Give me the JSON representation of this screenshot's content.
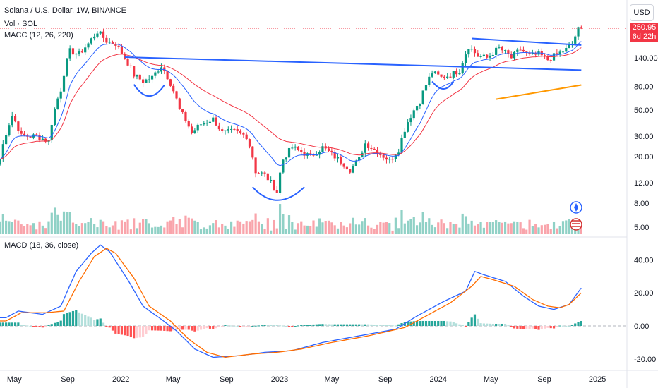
{
  "header": {
    "symbol_line": "Solana / U.S. Dollar, 1W, BINANCE",
    "vol_line": "Vol · SOL",
    "ma_line": "MACC (12, 26, 220)",
    "macd_line": "MACD (18, 36, close)",
    "currency": "USD"
  },
  "last_price": {
    "price": "250.95",
    "countdown": "6d 22h"
  },
  "colors": {
    "up": "#089981",
    "down": "#f23645",
    "fast_ma": "#2962ff",
    "slow_ma": "#f23645",
    "macd": "#2962ff",
    "signal": "#ff6d00",
    "drawing": "#2962ff",
    "orange_line": "#ff9800"
  },
  "chart_data": [
    {
      "type": "candlestick",
      "title": "Solana / U.S. Dollar, 1W, BINANCE",
      "y_scale": "log",
      "y_ticks": [
        "140.00",
        "80.00",
        "50.00",
        "30.00",
        "20.00",
        "12.00",
        "8.00",
        "5.00"
      ],
      "y_tick_values": [
        140,
        80,
        50,
        30,
        20,
        12,
        8,
        5
      ],
      "x_ticks": [
        "May",
        "Sep",
        "2022",
        "May",
        "Sep",
        "2023",
        "May",
        "Sep",
        "2024",
        "May",
        "Sep",
        "2025"
      ],
      "x_tick_dates": [
        "2021-05-01",
        "2021-09-01",
        "2022-01-01",
        "2022-05-01",
        "2022-09-01",
        "2023-01-01",
        "2023-05-01",
        "2023-09-01",
        "2024-01-01",
        "2024-05-01",
        "2024-09-01",
        "2025-01-01"
      ],
      "x_start": "2021-03-29",
      "x_end": "2025-03-10",
      "close_anchors": [
        [
          "2021-03-29",
          19
        ],
        [
          "2021-04-26",
          45
        ],
        [
          "2021-05-17",
          30
        ],
        [
          "2021-06-21",
          30
        ],
        [
          "2021-07-19",
          27
        ],
        [
          "2021-08-16",
          75
        ],
        [
          "2021-09-06",
          160
        ],
        [
          "2021-09-27",
          150
        ],
        [
          "2021-10-18",
          185
        ],
        [
          "2021-11-08",
          235
        ],
        [
          "2021-11-29",
          195
        ],
        [
          "2021-12-20",
          185
        ],
        [
          "2022-01-10",
          140
        ],
        [
          "2022-01-31",
          100
        ],
        [
          "2022-02-21",
          88
        ],
        [
          "2022-03-14",
          95
        ],
        [
          "2022-04-04",
          120
        ],
        [
          "2022-04-25",
          85
        ],
        [
          "2022-05-16",
          50
        ],
        [
          "2022-06-13",
          32
        ],
        [
          "2022-07-04",
          38
        ],
        [
          "2022-08-01",
          42
        ],
        [
          "2022-08-22",
          32
        ],
        [
          "2022-09-19",
          33
        ],
        [
          "2022-10-17",
          30
        ],
        [
          "2022-11-07",
          15
        ],
        [
          "2022-11-28",
          14
        ],
        [
          "2022-12-26",
          10
        ],
        [
          "2023-01-09",
          19
        ],
        [
          "2023-01-30",
          24
        ],
        [
          "2023-02-20",
          22
        ],
        [
          "2023-03-13",
          20
        ],
        [
          "2023-04-10",
          24
        ],
        [
          "2023-05-08",
          20
        ],
        [
          "2023-06-12",
          15.5
        ],
        [
          "2023-07-03",
          19
        ],
        [
          "2023-07-17",
          26
        ],
        [
          "2023-08-14",
          22
        ],
        [
          "2023-09-11",
          18.5
        ],
        [
          "2023-10-02",
          23
        ],
        [
          "2023-10-23",
          40
        ],
        [
          "2023-11-20",
          60
        ],
        [
          "2023-12-18",
          105
        ],
        [
          "2024-01-08",
          95
        ],
        [
          "2024-01-29",
          100
        ],
        [
          "2024-02-19",
          110
        ],
        [
          "2024-03-11",
          175
        ],
        [
          "2024-04-01",
          145
        ],
        [
          "2024-04-22",
          140
        ],
        [
          "2024-05-20",
          170
        ],
        [
          "2024-06-17",
          140
        ],
        [
          "2024-07-08",
          165
        ],
        [
          "2024-07-29",
          145
        ],
        [
          "2024-08-19",
          150
        ],
        [
          "2024-09-09",
          135
        ],
        [
          "2024-09-30",
          150
        ],
        [
          "2024-10-21",
          165
        ],
        [
          "2024-11-04",
          185
        ],
        [
          "2024-11-11",
          215
        ],
        [
          "2024-11-18",
          245
        ],
        [
          "2024-11-25",
          250.95
        ]
      ],
      "annotations": {
        "neckline": [
          [
            "2022-01-10",
            142
          ],
          [
            "2024-11-25",
            110
          ]
        ],
        "channel_top": [
          [
            "2024-03-18",
            205
          ],
          [
            "2024-11-25",
            180
          ]
        ],
        "orange_line": [
          [
            "2024-05-13",
            62
          ],
          [
            "2024-11-25",
            82
          ]
        ],
        "arc_1": {
          "from": [
            "2022-01-31",
            83
          ],
          "bottom": [
            "2022-03-07",
            66
          ],
          "to": [
            "2022-04-11",
            82
          ]
        },
        "arc_2": {
          "from": [
            "2022-10-31",
            11
          ],
          "bottom": [
            "2022-12-26",
            8.5
          ],
          "to": [
            "2023-02-27",
            11
          ]
        },
        "arc_3": {
          "from": [
            "2023-12-18",
            88
          ],
          "bottom": [
            "2024-01-15",
            76
          ],
          "to": [
            "2024-02-05",
            88
          ]
        }
      }
    },
    {
      "type": "bar",
      "title": "Vol · SOL"
    },
    {
      "type": "line",
      "title": "MACD (18, 36, close)",
      "y_ticks": [
        "40.00",
        "20.00",
        "0.00",
        "-20.00"
      ],
      "y_tick_values": [
        40,
        20,
        0,
        -20
      ],
      "series": [
        {
          "name": "MACD",
          "anchors": [
            [
              "2021-04-12",
              5
            ],
            [
              "2021-05-10",
              9
            ],
            [
              "2021-07-05",
              7
            ],
            [
              "2021-08-16",
              12
            ],
            [
              "2021-09-20",
              33
            ],
            [
              "2021-10-25",
              44
            ],
            [
              "2021-11-15",
              49
            ],
            [
              "2021-12-06",
              45
            ],
            [
              "2022-01-17",
              28
            ],
            [
              "2022-02-21",
              12
            ],
            [
              "2022-04-04",
              4
            ],
            [
              "2022-05-09",
              -3
            ],
            [
              "2022-06-20",
              -14
            ],
            [
              "2022-08-01",
              -19
            ],
            [
              "2022-10-03",
              -18
            ],
            [
              "2022-11-28",
              -16
            ],
            [
              "2023-01-30",
              -15
            ],
            [
              "2023-04-10",
              -10
            ],
            [
              "2023-07-03",
              -6
            ],
            [
              "2023-09-25",
              -2
            ],
            [
              "2023-11-13",
              6
            ],
            [
              "2024-01-15",
              15
            ],
            [
              "2024-03-04",
              21
            ],
            [
              "2024-03-25",
              33
            ],
            [
              "2024-04-15",
              31
            ],
            [
              "2024-06-03",
              27
            ],
            [
              "2024-07-15",
              18
            ],
            [
              "2024-08-19",
              12
            ],
            [
              "2024-09-23",
              10
            ],
            [
              "2024-10-28",
              13
            ],
            [
              "2024-11-25",
              23
            ]
          ]
        },
        {
          "name": "Signal",
          "anchors": [
            [
              "2021-04-12",
              3
            ],
            [
              "2021-05-17",
              8
            ],
            [
              "2021-07-12",
              8
            ],
            [
              "2021-08-23",
              9
            ],
            [
              "2021-09-27",
              27
            ],
            [
              "2021-11-01",
              42
            ],
            [
              "2021-11-29",
              47
            ],
            [
              "2021-12-20",
              44
            ],
            [
              "2022-01-31",
              29
            ],
            [
              "2022-03-07",
              12
            ],
            [
              "2022-04-25",
              3
            ],
            [
              "2022-06-06",
              -8
            ],
            [
              "2022-07-18",
              -16
            ],
            [
              "2022-08-29",
              -19
            ],
            [
              "2022-10-31",
              -17
            ],
            [
              "2022-12-26",
              -16
            ],
            [
              "2023-02-20",
              -14
            ],
            [
              "2023-05-01",
              -10
            ],
            [
              "2023-07-24",
              -6
            ],
            [
              "2023-10-16",
              -1
            ],
            [
              "2023-12-04",
              6
            ],
            [
              "2024-01-29",
              14
            ],
            [
              "2024-03-18",
              24
            ],
            [
              "2024-04-08",
              30
            ],
            [
              "2024-05-06",
              28
            ],
            [
              "2024-06-24",
              24
            ],
            [
              "2024-08-05",
              16
            ],
            [
              "2024-09-09",
              12
            ],
            [
              "2024-10-07",
              11
            ],
            [
              "2024-10-28",
              13
            ],
            [
              "2024-11-25",
              20
            ]
          ]
        }
      ]
    }
  ]
}
